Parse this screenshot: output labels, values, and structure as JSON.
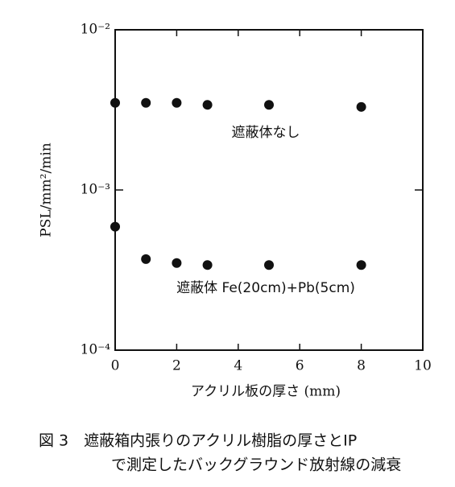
{
  "chart_data": {
    "type": "scatter",
    "x_label": "アクリル板の厚さ (mm)",
    "y_label": "PSL/mm²/min",
    "caption": [
      "図 3　遮蔽箱内張りのアクリル樹脂の厚さとIP",
      "で測定したバックグラウンド放射線の減衰"
    ],
    "log_y": true,
    "xlim": [
      0,
      10
    ],
    "xticks": [
      0,
      2,
      4,
      6,
      8,
      10
    ],
    "ylim": [
      0.0001,
      0.01
    ],
    "yticks": [
      {
        "value": 0.0001,
        "label": "10⁻⁴"
      },
      {
        "value": 0.001,
        "label": "10⁻³"
      },
      {
        "value": 0.01,
        "label": "10⁻²"
      }
    ],
    "series": [
      {
        "name": "遮蔽体なし",
        "color": "#111111",
        "x": [
          0,
          1,
          2,
          3,
          5,
          8
        ],
        "values": [
          0.0035,
          0.0035,
          0.0035,
          0.0034,
          0.0034,
          0.0033
        ]
      },
      {
        "name": "遮蔽体 Fe(20cm)+Pb(5cm)",
        "color": "#111111",
        "x": [
          0,
          1,
          2,
          3,
          5,
          8
        ],
        "values": [
          0.00059,
          0.00037,
          0.00035,
          0.00034,
          0.00034,
          0.00034
        ]
      }
    ]
  }
}
